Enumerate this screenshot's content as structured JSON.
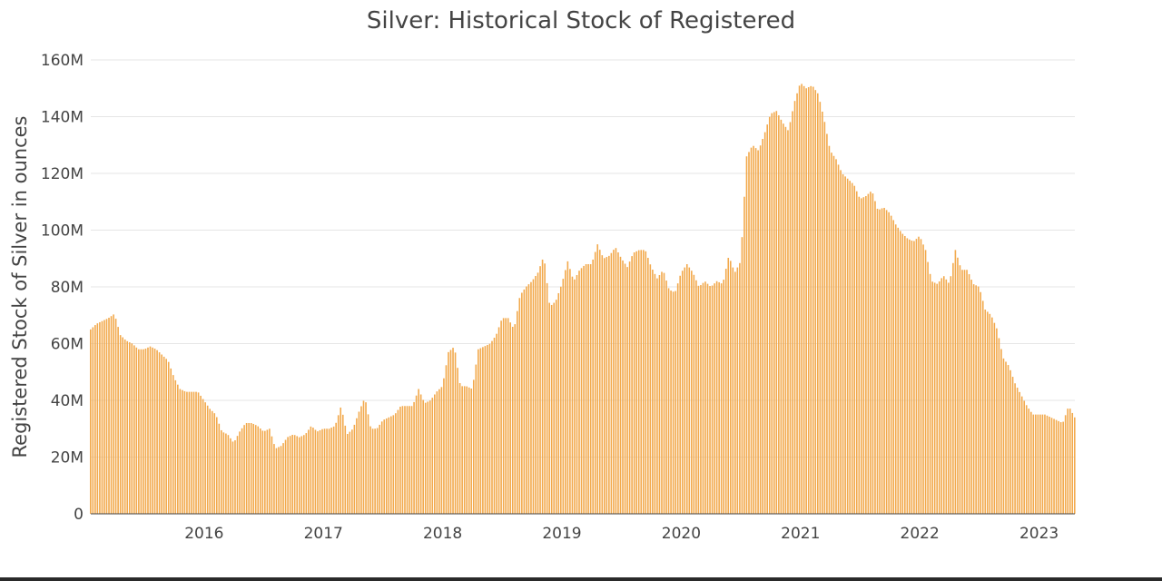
{
  "chart_data": {
    "type": "bar",
    "title": "Silver: Historical Stock of Registered",
    "xlabel": "",
    "ylabel": "Registered Stock of Silver in ounces",
    "ylim": [
      0,
      160000000
    ],
    "yticks": [
      0,
      20000000,
      40000000,
      60000000,
      80000000,
      100000000,
      120000000,
      140000000,
      160000000
    ],
    "ytick_labels": [
      "0",
      "20M",
      "40M",
      "60M",
      "80M",
      "100M",
      "120M",
      "140M",
      "160M"
    ],
    "xlim": [
      2015.05,
      2023.3
    ],
    "xticks": [
      2016,
      2017,
      2018,
      2019,
      2020,
      2021,
      2022,
      2023
    ],
    "xtick_labels": [
      "2016",
      "2017",
      "2018",
      "2019",
      "2020",
      "2021",
      "2022",
      "2023"
    ],
    "grid": true,
    "bar_color": "#f2a94c",
    "series": [
      {
        "name": "Registered",
        "points": [
          [
            2015.05,
            65
          ],
          [
            2015.1,
            67
          ],
          [
            2015.15,
            68
          ],
          [
            2015.2,
            69
          ],
          [
            2015.25,
            70.5
          ],
          [
            2015.3,
            63
          ],
          [
            2015.35,
            61
          ],
          [
            2015.4,
            60
          ],
          [
            2015.45,
            58
          ],
          [
            2015.5,
            58
          ],
          [
            2015.55,
            59
          ],
          [
            2015.6,
            58
          ],
          [
            2015.65,
            56
          ],
          [
            2015.7,
            54
          ],
          [
            2015.75,
            48
          ],
          [
            2015.8,
            44
          ],
          [
            2015.85,
            43
          ],
          [
            2015.9,
            43
          ],
          [
            2015.95,
            43
          ],
          [
            2016.0,
            40
          ],
          [
            2016.05,
            37
          ],
          [
            2016.1,
            35
          ],
          [
            2016.15,
            29
          ],
          [
            2016.2,
            28
          ],
          [
            2016.25,
            25
          ],
          [
            2016.3,
            29
          ],
          [
            2016.35,
            32
          ],
          [
            2016.4,
            32
          ],
          [
            2016.45,
            31
          ],
          [
            2016.5,
            29
          ],
          [
            2016.55,
            30
          ],
          [
            2016.6,
            23
          ],
          [
            2016.65,
            24
          ],
          [
            2016.7,
            27
          ],
          [
            2016.75,
            28
          ],
          [
            2016.8,
            27
          ],
          [
            2016.85,
            28
          ],
          [
            2016.9,
            31
          ],
          [
            2016.95,
            29
          ],
          [
            2017.0,
            30
          ],
          [
            2017.05,
            30
          ],
          [
            2017.1,
            31
          ],
          [
            2017.15,
            38
          ],
          [
            2017.2,
            28
          ],
          [
            2017.25,
            30
          ],
          [
            2017.3,
            36
          ],
          [
            2017.35,
            41
          ],
          [
            2017.4,
            30
          ],
          [
            2017.45,
            30
          ],
          [
            2017.5,
            33
          ],
          [
            2017.55,
            34
          ],
          [
            2017.6,
            35
          ],
          [
            2017.65,
            38
          ],
          [
            2017.7,
            38
          ],
          [
            2017.75,
            38
          ],
          [
            2017.8,
            44
          ],
          [
            2017.85,
            39
          ],
          [
            2017.9,
            40
          ],
          [
            2017.95,
            43
          ],
          [
            2018.0,
            45
          ],
          [
            2018.05,
            57
          ],
          [
            2018.1,
            59
          ],
          [
            2018.15,
            45
          ],
          [
            2018.2,
            45
          ],
          [
            2018.25,
            44
          ],
          [
            2018.3,
            58
          ],
          [
            2018.35,
            59
          ],
          [
            2018.4,
            60
          ],
          [
            2018.45,
            63
          ],
          [
            2018.5,
            69
          ],
          [
            2018.55,
            69
          ],
          [
            2018.6,
            65
          ],
          [
            2018.65,
            77
          ],
          [
            2018.7,
            80
          ],
          [
            2018.75,
            82
          ],
          [
            2018.8,
            85
          ],
          [
            2018.85,
            91
          ],
          [
            2018.9,
            73
          ],
          [
            2018.95,
            75
          ],
          [
            2019.0,
            81
          ],
          [
            2019.05,
            89
          ],
          [
            2019.1,
            82
          ],
          [
            2019.15,
            86
          ],
          [
            2019.2,
            88
          ],
          [
            2019.25,
            88
          ],
          [
            2019.3,
            95
          ],
          [
            2019.35,
            90
          ],
          [
            2019.4,
            91
          ],
          [
            2019.45,
            94
          ],
          [
            2019.5,
            90
          ],
          [
            2019.55,
            87
          ],
          [
            2019.6,
            92
          ],
          [
            2019.65,
            93
          ],
          [
            2019.7,
            93
          ],
          [
            2019.75,
            87
          ],
          [
            2019.8,
            83
          ],
          [
            2019.85,
            86
          ],
          [
            2019.9,
            79
          ],
          [
            2019.95,
            78
          ],
          [
            2020.0,
            85
          ],
          [
            2020.05,
            88
          ],
          [
            2020.1,
            85
          ],
          [
            2020.15,
            80
          ],
          [
            2020.2,
            82
          ],
          [
            2020.25,
            80
          ],
          [
            2020.3,
            82
          ],
          [
            2020.35,
            81
          ],
          [
            2020.4,
            91
          ],
          [
            2020.45,
            85
          ],
          [
            2020.5,
            89
          ],
          [
            2020.55,
            126
          ],
          [
            2020.6,
            130
          ],
          [
            2020.65,
            128
          ],
          [
            2020.7,
            134
          ],
          [
            2020.75,
            141
          ],
          [
            2020.8,
            142
          ],
          [
            2020.85,
            138
          ],
          [
            2020.9,
            135
          ],
          [
            2020.95,
            145
          ],
          [
            2021.0,
            152
          ],
          [
            2021.05,
            150
          ],
          [
            2021.1,
            151
          ],
          [
            2021.15,
            148
          ],
          [
            2021.2,
            139
          ],
          [
            2021.25,
            128
          ],
          [
            2021.3,
            125
          ],
          [
            2021.35,
            120
          ],
          [
            2021.4,
            118
          ],
          [
            2021.45,
            116
          ],
          [
            2021.5,
            111
          ],
          [
            2021.55,
            112
          ],
          [
            2021.6,
            114
          ],
          [
            2021.65,
            107
          ],
          [
            2021.7,
            108
          ],
          [
            2021.75,
            106
          ],
          [
            2021.8,
            102
          ],
          [
            2021.85,
            99
          ],
          [
            2021.9,
            97
          ],
          [
            2021.95,
            96
          ],
          [
            2022.0,
            98
          ],
          [
            2022.05,
            93
          ],
          [
            2022.1,
            82
          ],
          [
            2022.15,
            81
          ],
          [
            2022.2,
            84
          ],
          [
            2022.25,
            81
          ],
          [
            2022.3,
            93
          ],
          [
            2022.35,
            86
          ],
          [
            2022.4,
            86
          ],
          [
            2022.45,
            81
          ],
          [
            2022.5,
            80
          ],
          [
            2022.55,
            72
          ],
          [
            2022.6,
            70
          ],
          [
            2022.65,
            65
          ],
          [
            2022.7,
            55
          ],
          [
            2022.75,
            52
          ],
          [
            2022.8,
            46
          ],
          [
            2022.85,
            42
          ],
          [
            2022.9,
            38
          ],
          [
            2022.95,
            35
          ],
          [
            2023.0,
            35
          ],
          [
            2023.05,
            35
          ],
          [
            2023.1,
            34
          ],
          [
            2023.15,
            33
          ],
          [
            2023.2,
            32
          ],
          [
            2023.25,
            38
          ],
          [
            2023.3,
            34
          ]
        ],
        "value_unit": "millions of ounces"
      }
    ]
  }
}
